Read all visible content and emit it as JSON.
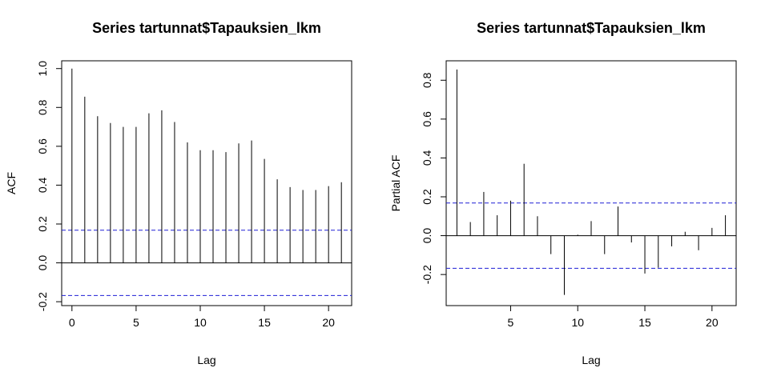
{
  "chart_data": [
    {
      "type": "bar",
      "title": "Series  tartunnat$Tapauksien_lkm",
      "xlabel": "Lag",
      "ylabel": "ACF",
      "x": [
        0,
        1,
        2,
        3,
        4,
        5,
        6,
        7,
        8,
        9,
        10,
        11,
        12,
        13,
        14,
        15,
        16,
        17,
        18,
        19,
        20,
        21
      ],
      "values": [
        1.0,
        0.855,
        0.755,
        0.72,
        0.7,
        0.7,
        0.77,
        0.785,
        0.725,
        0.62,
        0.58,
        0.58,
        0.57,
        0.615,
        0.63,
        0.535,
        0.43,
        0.39,
        0.375,
        0.375,
        0.395,
        0.415
      ],
      "xlim": [
        -0.8,
        21.8
      ],
      "ylim": [
        -0.22,
        1.04
      ],
      "xticks": [
        "0",
        "5",
        "10",
        "15",
        "20"
      ],
      "yticks": [
        "-0.2",
        "0.0",
        "0.2",
        "0.4",
        "0.6",
        "0.8",
        "1.0"
      ],
      "confidence_limits": [
        0.168,
        -0.168
      ],
      "grid": false
    },
    {
      "type": "bar",
      "title": "Series  tartunnat$Tapauksien_lkm",
      "xlabel": "Lag",
      "ylabel": "Partial ACF",
      "x": [
        1,
        2,
        3,
        4,
        5,
        6,
        7,
        8,
        9,
        10,
        11,
        12,
        13,
        14,
        15,
        16,
        17,
        18,
        19,
        20,
        21
      ],
      "values": [
        0.855,
        0.07,
        0.225,
        0.105,
        0.18,
        0.37,
        0.1,
        -0.095,
        -0.305,
        0.005,
        0.075,
        -0.095,
        0.15,
        -0.035,
        -0.195,
        -0.165,
        -0.055,
        0.02,
        -0.075,
        0.04,
        0.105
      ],
      "xlim": [
        0.2,
        21.8
      ],
      "ylim": [
        -0.36,
        0.9
      ],
      "xticks": [
        "5",
        "10",
        "15",
        "20"
      ],
      "yticks": [
        "-0.2",
        "0.0",
        "0.2",
        "0.4",
        "0.6",
        "0.8"
      ],
      "confidence_limits": [
        0.168,
        -0.168
      ],
      "grid": false
    }
  ]
}
